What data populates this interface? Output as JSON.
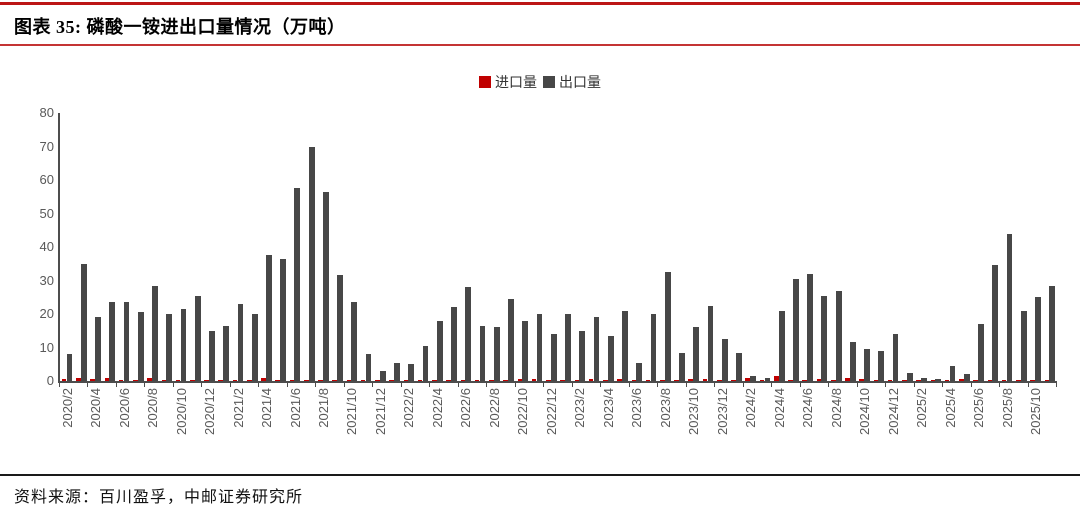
{
  "header": {
    "title": "图表 35: 磷酸一铵进出口量情况（万吨）"
  },
  "footer": {
    "source": "资料来源：百川盈孚，中邮证券研究所"
  },
  "colors": {
    "accent_red": "#c00000",
    "bar_gray": "#474747",
    "rule_red": "#bc1616",
    "axis_gray": "#4d4d4d",
    "tick_text_gray": "#595959"
  },
  "chart_data": {
    "type": "bar",
    "title": "磷酸一铵进出口量情况（万吨）",
    "legend_position": "top-center",
    "grid": false,
    "ylim": [
      0,
      80
    ],
    "yticks": [
      0,
      10,
      20,
      30,
      40,
      50,
      60,
      70,
      80
    ],
    "x_label_interval": 2,
    "categories": [
      "2020/2",
      "2020/3",
      "2020/4",
      "2020/5",
      "2020/6",
      "2020/7",
      "2020/8",
      "2020/9",
      "2020/10",
      "2020/11",
      "2020/12",
      "2021/1",
      "2021/2",
      "2021/3",
      "2021/4",
      "2021/5",
      "2021/6",
      "2021/7",
      "2021/8",
      "2021/9",
      "2021/10",
      "2021/11",
      "2021/12",
      "2022/1",
      "2022/2",
      "2022/3",
      "2022/4",
      "2022/5",
      "2022/6",
      "2022/7",
      "2022/8",
      "2022/9",
      "2022/10",
      "2022/11",
      "2022/12",
      "2023/1",
      "2023/2",
      "2023/3",
      "2023/4",
      "2023/5",
      "2023/6",
      "2023/7",
      "2023/8",
      "2023/9",
      "2023/10",
      "2023/11",
      "2023/12",
      "2024/1",
      "2024/2",
      "2024/3",
      "2024/4",
      "2024/5",
      "2024/6",
      "2024/7",
      "2024/8",
      "2024/9",
      "2024/10",
      "2024/11",
      "2024/12",
      "2025/1",
      "2025/2",
      "2025/3",
      "2025/4",
      "2025/5",
      "2025/6",
      "2025/7",
      "2025/8",
      "2025/9",
      "2025/10",
      "2025/11"
    ],
    "series": [
      {
        "name": "进口量",
        "color": "#c00000",
        "values": [
          0.5,
          1.0,
          0.6,
          0.8,
          0.3,
          0.2,
          0.8,
          0.3,
          0.3,
          0.4,
          0.3,
          0.2,
          0.2,
          0.3,
          0.8,
          0.3,
          0.3,
          0.3,
          0.2,
          0.2,
          0.3,
          0.2,
          0.2,
          0.2,
          0.3,
          0.3,
          0.2,
          0.2,
          0.3,
          0.2,
          0.3,
          0.3,
          0.6,
          0.6,
          0.3,
          0.2,
          0.3,
          0.6,
          0.3,
          0.6,
          0.3,
          0.3,
          0.3,
          0.3,
          0.6,
          0.6,
          0.3,
          0.3,
          0.8,
          0.3,
          1.5,
          0.3,
          0.3,
          0.6,
          0.3,
          0.8,
          0.6,
          0.3,
          0.3,
          0.3,
          0.3,
          0.2,
          0.3,
          0.6,
          0.4,
          0.3,
          0.3,
          0.2,
          0.3,
          0.4
        ]
      },
      {
        "name": "出口量",
        "color": "#474747",
        "values": [
          8,
          35,
          19,
          23.5,
          23.5,
          20.5,
          28.5,
          20,
          21.5,
          25.5,
          15,
          16.5,
          23,
          20,
          37.5,
          36.5,
          57.5,
          70,
          56.5,
          31.5,
          23.5,
          8,
          3,
          5.5,
          5,
          10.5,
          18,
          22,
          28,
          16.5,
          16,
          24.5,
          18,
          20,
          14,
          20,
          15,
          19,
          13.5,
          21,
          5.5,
          20,
          32.5,
          8.5,
          16,
          22.5,
          12.5,
          8.5,
          1.5,
          1,
          21,
          30.5,
          32,
          25.5,
          27,
          11.5,
          9.5,
          9,
          14,
          2.5,
          1,
          0.5,
          4.5,
          2,
          17,
          34.5,
          44,
          21,
          25,
          28.5
        ]
      }
    ]
  }
}
